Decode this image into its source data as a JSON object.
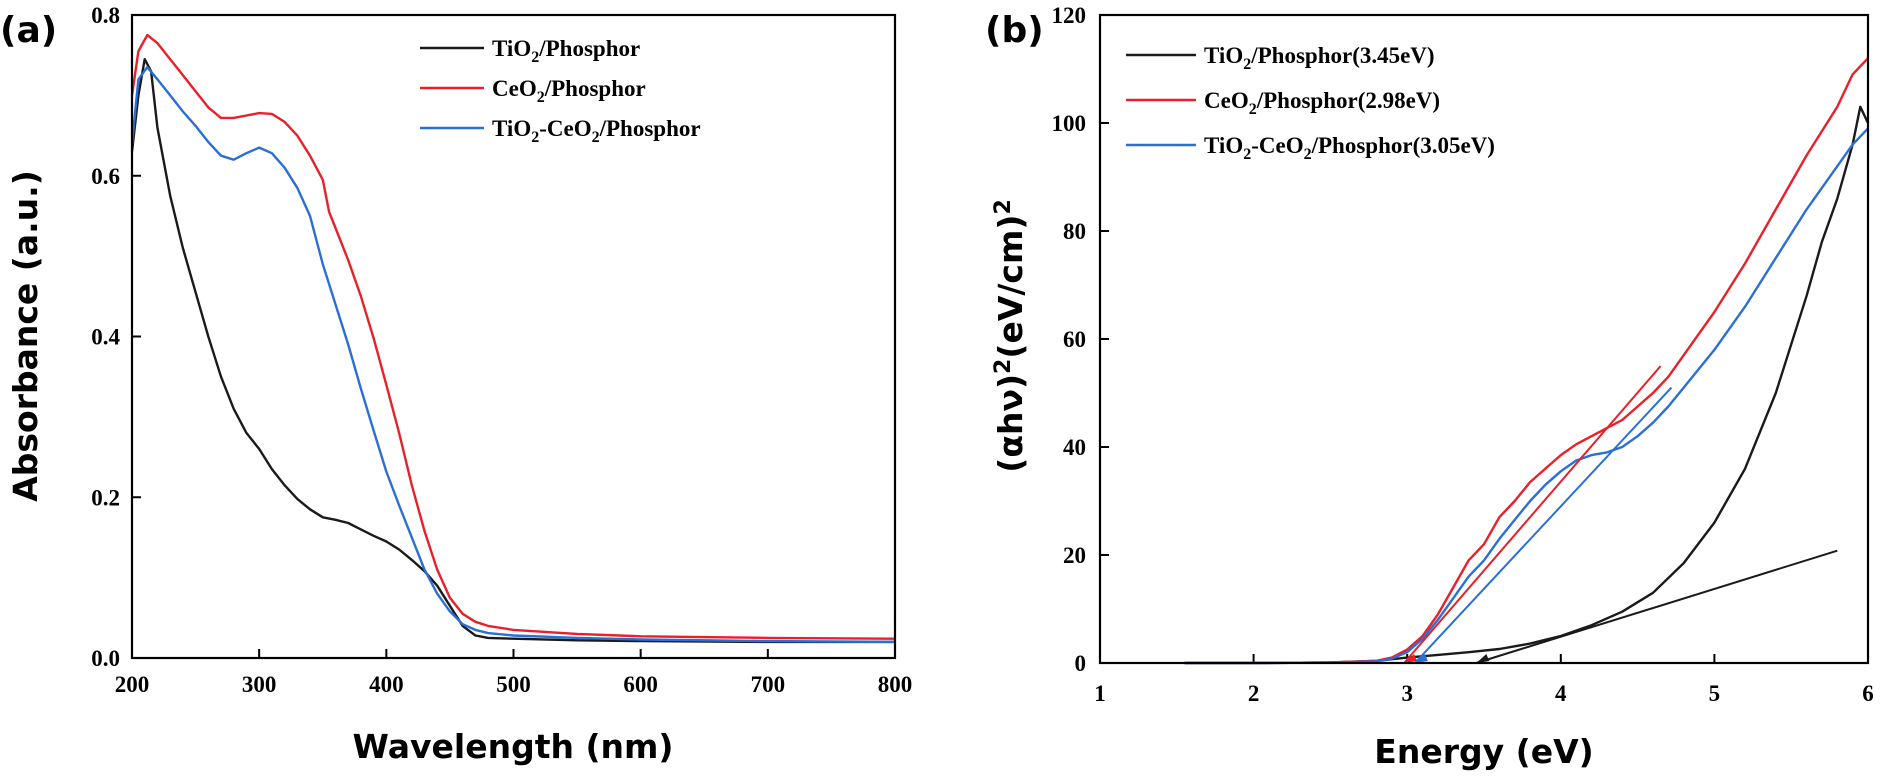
{
  "chart_data": [
    {
      "type": "line",
      "panel_label": "(a)",
      "title": "",
      "xlabel": "Wavelength (nm)",
      "ylabel": "Absorbance (a.u.)",
      "xlim": [
        200,
        800
      ],
      "ylim": [
        0.0,
        0.8
      ],
      "xticks": [
        200,
        300,
        400,
        500,
        600,
        700,
        800
      ],
      "xtick_labels": [
        "200",
        "300",
        "400",
        "500",
        "600",
        "700",
        "800"
      ],
      "yticks": [
        0.0,
        0.2,
        0.4,
        0.6,
        0.8
      ],
      "ytick_labels": [
        "0.0",
        "0.2",
        "0.4",
        "0.6",
        "0.8"
      ],
      "grid": false,
      "legend_position": "top-right",
      "series": [
        {
          "name": "TiO₂/Phosphor",
          "legend": {
            "pre": "TiO",
            "sub1": "2",
            "mid": "/Phosphor",
            "sub2": "",
            "post": ""
          },
          "color": "#1a1a1a",
          "x": [
            200,
            205,
            210,
            215,
            220,
            230,
            240,
            250,
            260,
            270,
            280,
            290,
            300,
            310,
            320,
            330,
            340,
            350,
            360,
            370,
            380,
            390,
            400,
            410,
            420,
            430,
            440,
            450,
            460,
            470,
            480,
            500,
            550,
            600,
            700,
            800
          ],
          "y": [
            0.63,
            0.7,
            0.745,
            0.73,
            0.66,
            0.575,
            0.51,
            0.455,
            0.4,
            0.35,
            0.31,
            0.28,
            0.26,
            0.235,
            0.215,
            0.198,
            0.185,
            0.175,
            0.172,
            0.168,
            0.16,
            0.152,
            0.145,
            0.135,
            0.122,
            0.108,
            0.09,
            0.065,
            0.04,
            0.028,
            0.025,
            0.024,
            0.022,
            0.021,
            0.02,
            0.02
          ]
        },
        {
          "name": "CeO₂/Phosphor",
          "legend": {
            "pre": "CeO",
            "sub1": "2",
            "mid": "/Phosphor",
            "sub2": "",
            "post": ""
          },
          "color": "#e8202a",
          "x": [
            200,
            205,
            212,
            220,
            230,
            240,
            250,
            260,
            270,
            280,
            290,
            300,
            310,
            320,
            330,
            340,
            350,
            355,
            360,
            370,
            380,
            390,
            400,
            410,
            420,
            430,
            440,
            450,
            460,
            470,
            480,
            500,
            550,
            600,
            700,
            800
          ],
          "y": [
            0.7,
            0.755,
            0.775,
            0.765,
            0.745,
            0.725,
            0.705,
            0.685,
            0.672,
            0.672,
            0.675,
            0.678,
            0.677,
            0.667,
            0.65,
            0.625,
            0.595,
            0.555,
            0.535,
            0.495,
            0.45,
            0.398,
            0.34,
            0.28,
            0.215,
            0.158,
            0.11,
            0.075,
            0.055,
            0.045,
            0.04,
            0.035,
            0.03,
            0.027,
            0.025,
            0.024
          ]
        },
        {
          "name": "TiO₂-CeO₂/Phosphor",
          "legend": {
            "pre": "TiO",
            "sub1": "2",
            "mid": "-CeO",
            "sub2": "2",
            "post": "/Phosphor"
          },
          "color": "#2b6fd6",
          "x": [
            200,
            205,
            212,
            220,
            230,
            240,
            250,
            260,
            270,
            280,
            290,
            300,
            310,
            320,
            330,
            340,
            350,
            360,
            370,
            380,
            390,
            400,
            410,
            420,
            430,
            440,
            450,
            460,
            470,
            480,
            500,
            550,
            600,
            700,
            800
          ],
          "y": [
            0.64,
            0.72,
            0.735,
            0.72,
            0.7,
            0.68,
            0.662,
            0.642,
            0.625,
            0.62,
            0.628,
            0.635,
            0.628,
            0.61,
            0.585,
            0.55,
            0.49,
            0.44,
            0.39,
            0.335,
            0.283,
            0.232,
            0.19,
            0.15,
            0.11,
            0.08,
            0.058,
            0.042,
            0.035,
            0.031,
            0.028,
            0.025,
            0.023,
            0.021,
            0.02
          ]
        }
      ]
    },
    {
      "type": "line",
      "panel_label": "(b)",
      "title": "",
      "xlabel": "Energy  (eV)",
      "ylabel_parts": {
        "open": "(αhν)",
        "sup1": "2",
        "mid": "(eV/cm)",
        "sup2": "2"
      },
      "xlim": [
        1,
        6
      ],
      "ylim": [
        0,
        120
      ],
      "xticks": [
        1,
        2,
        3,
        4,
        5,
        6
      ],
      "xtick_labels": [
        "1",
        "2",
        "3",
        "4",
        "5",
        "6"
      ],
      "yticks": [
        0,
        20,
        40,
        60,
        80,
        100,
        120
      ],
      "ytick_labels": [
        "0",
        "20",
        "40",
        "60",
        "80",
        "100",
        "120"
      ],
      "grid": false,
      "legend_position": "top-left",
      "series": [
        {
          "name": "TiO₂/Phosphor(3.45eV)",
          "legend": {
            "pre": "TiO",
            "sub1": "2",
            "mid": "/Phosphor(3.45eV)",
            "sub2": "",
            "post": ""
          },
          "color": "#1a1a1a",
          "x": [
            1.55,
            2.0,
            2.5,
            2.8,
            3.0,
            3.2,
            3.4,
            3.6,
            3.8,
            4.0,
            4.2,
            4.4,
            4.6,
            4.8,
            5.0,
            5.2,
            5.4,
            5.6,
            5.7,
            5.8,
            5.9,
            5.95,
            6.0
          ],
          "y": [
            0,
            0,
            0.1,
            0.4,
            1.0,
            1.5,
            2.0,
            2.6,
            3.6,
            5.0,
            7.0,
            9.5,
            13.0,
            18.5,
            26.0,
            36.0,
            50.0,
            68.0,
            78.0,
            86.0,
            96.0,
            103.0,
            100.0
          ]
        },
        {
          "name": "CeO₂/Phosphor(2.98eV)",
          "legend": {
            "pre": "CeO",
            "sub1": "2",
            "mid": "/Phosphor(2.98eV)",
            "sub2": "",
            "post": ""
          },
          "color": "#e8202a",
          "x": [
            1.55,
            2.0,
            2.5,
            2.8,
            2.9,
            3.0,
            3.1,
            3.2,
            3.3,
            3.4,
            3.5,
            3.6,
            3.7,
            3.8,
            3.9,
            4.0,
            4.1,
            4.2,
            4.3,
            4.4,
            4.5,
            4.6,
            4.7,
            4.8,
            5.0,
            5.2,
            5.4,
            5.6,
            5.8,
            5.9,
            6.0
          ],
          "y": [
            0,
            0,
            0.1,
            0.4,
            1.0,
            2.5,
            5.0,
            9.0,
            14.0,
            19.0,
            22.0,
            27.0,
            30.0,
            33.5,
            36.0,
            38.5,
            40.5,
            42.0,
            43.5,
            45.0,
            47.5,
            50.0,
            53.0,
            57.0,
            65.0,
            74.0,
            84.0,
            94.0,
            103.0,
            109.0,
            112.0
          ]
        },
        {
          "name": "TiO₂-CeO₂/Phosphor(3.05eV)",
          "legend": {
            "pre": "TiO",
            "sub1": "2",
            "mid": "-CeO",
            "sub2": "2",
            "post": "/Phosphor(3.05eV)"
          },
          "color": "#2b6fd6",
          "x": [
            1.55,
            2.0,
            2.5,
            2.8,
            2.9,
            3.0,
            3.1,
            3.2,
            3.3,
            3.4,
            3.5,
            3.6,
            3.7,
            3.8,
            3.9,
            4.0,
            4.1,
            4.2,
            4.3,
            4.4,
            4.5,
            4.6,
            4.7,
            4.8,
            5.0,
            5.2,
            5.4,
            5.6,
            5.8,
            5.9,
            6.0
          ],
          "y": [
            0,
            0,
            0.1,
            0.3,
            0.8,
            2.0,
            4.5,
            8.0,
            12.0,
            16.0,
            19.0,
            23.0,
            26.5,
            30.0,
            33.0,
            35.5,
            37.5,
            38.5,
            39.0,
            40.0,
            42.0,
            44.5,
            47.5,
            51.0,
            58.0,
            66.0,
            75.0,
            84.0,
            92.0,
            96.0,
            99.0
          ]
        }
      ],
      "tangent_lines": [
        {
          "series": "TiO₂/Phosphor(3.45eV)",
          "color": "#1a1a1a",
          "x": [
            3.45,
            5.8
          ],
          "y": [
            0,
            20.8
          ]
        },
        {
          "series": "CeO₂/Phosphor(2.98eV)",
          "color": "#e8202a",
          "x": [
            2.98,
            4.65
          ],
          "y": [
            0,
            55.0
          ]
        },
        {
          "series": "TiO₂-CeO₂/Phosphor(3.05eV)",
          "color": "#2b6fd6",
          "x": [
            3.05,
            4.72
          ],
          "y": [
            0,
            51.0
          ]
        }
      ]
    }
  ]
}
